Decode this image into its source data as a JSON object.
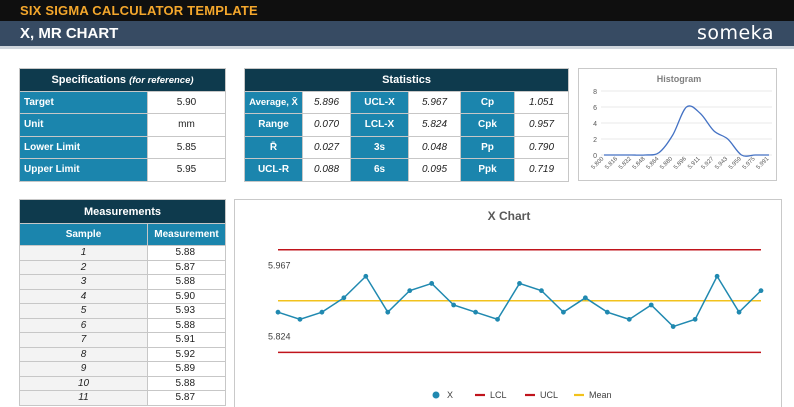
{
  "header": {
    "title": "SIX SIGMA CALCULATOR TEMPLATE",
    "subtitle": "X, MR CHART",
    "logo": "someka"
  },
  "specifications": {
    "title": "Specifications",
    "title_note": "(for reference)",
    "rows": [
      {
        "label": "Target",
        "value": "5.90"
      },
      {
        "label": "Unit",
        "value": "mm"
      },
      {
        "label": "Lower Limit",
        "value": "5.85"
      },
      {
        "label": "Upper Limit",
        "value": "5.95"
      }
    ]
  },
  "statistics": {
    "title": "Statistics",
    "rows": [
      [
        {
          "label": "Average, X̄",
          "value": "5.896"
        },
        {
          "label": "UCL-X",
          "value": "5.967"
        },
        {
          "label": "Cp",
          "value": "1.051"
        }
      ],
      [
        {
          "label": "Range",
          "value": "0.070"
        },
        {
          "label": "LCL-X",
          "value": "5.824"
        },
        {
          "label": "Cpk",
          "value": "0.957"
        }
      ],
      [
        {
          "label": "R̄",
          "value": "0.027"
        },
        {
          "label": "3s",
          "value": "0.048"
        },
        {
          "label": "Pp",
          "value": "0.790"
        }
      ],
      [
        {
          "label": "UCL-R",
          "value": "0.088"
        },
        {
          "label": "6s",
          "value": "0.095"
        },
        {
          "label": "Ppk",
          "value": "0.719"
        }
      ]
    ]
  },
  "measurements": {
    "title": "Measurements",
    "col_sample": "Sample",
    "col_measurement": "Measurement",
    "rows": [
      {
        "sample": "1",
        "value": "5.88"
      },
      {
        "sample": "2",
        "value": "5.87"
      },
      {
        "sample": "3",
        "value": "5.88"
      },
      {
        "sample": "4",
        "value": "5.90"
      },
      {
        "sample": "5",
        "value": "5.93"
      },
      {
        "sample": "6",
        "value": "5.88"
      },
      {
        "sample": "7",
        "value": "5.91"
      },
      {
        "sample": "8",
        "value": "5.92"
      },
      {
        "sample": "9",
        "value": "5.89"
      },
      {
        "sample": "10",
        "value": "5.88"
      },
      {
        "sample": "11",
        "value": "5.87"
      }
    ]
  },
  "colors": {
    "dark_header": "#0e3a4d",
    "label_blue": "#1b85ad",
    "accent_orange": "#f4a72c",
    "subbar": "#374b63",
    "series": "#2089b0",
    "limit": "#c0141c",
    "mean": "#f2c21c"
  },
  "chart_data": [
    {
      "type": "line",
      "title": "Histogram",
      "x": [
        "5.800",
        "5.816",
        "5.832",
        "5.848",
        "5.864",
        "5.880",
        "5.896",
        "5.911",
        "5.927",
        "5.943",
        "5.959",
        "5.975",
        "5.991"
      ],
      "values": [
        0,
        0,
        0,
        0,
        0.3,
        2.5,
        6,
        5.2,
        3,
        2,
        0,
        0,
        0
      ],
      "ylim": [
        0,
        8
      ],
      "yticks": [
        "0",
        "2",
        "4",
        "6",
        "8"
      ],
      "grid": true
    },
    {
      "type": "line",
      "title": "X Chart",
      "ucl": 5.967,
      "lcl": 5.824,
      "mean": 5.896,
      "ucl_label": "5.967",
      "lcl_label": "5.824",
      "ylim": [
        5.78,
        6.0
      ],
      "values": [
        5.88,
        5.87,
        5.88,
        5.9,
        5.93,
        5.88,
        5.91,
        5.92,
        5.89,
        5.88,
        5.87,
        5.92,
        5.91,
        5.88,
        5.9,
        5.88,
        5.87,
        5.89,
        5.86,
        5.87,
        5.93,
        5.88,
        5.91
      ],
      "legend": [
        "X",
        "LCL",
        "UCL",
        "Mean"
      ],
      "legend_position": "bottom"
    }
  ]
}
